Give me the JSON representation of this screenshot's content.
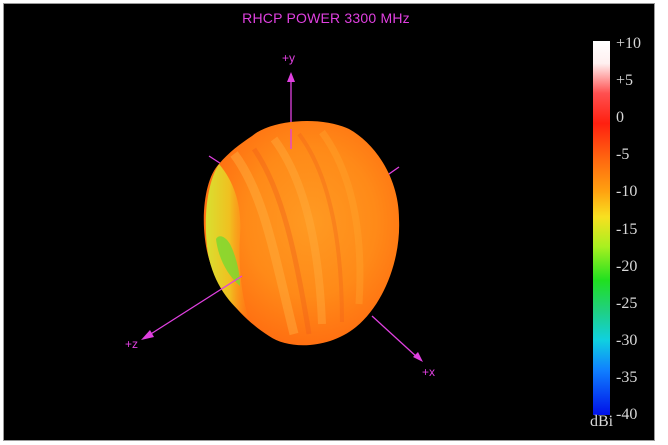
{
  "chart_data": {
    "type": "3d-radiation-pattern",
    "title": "RHCP POWER 3300  MHz",
    "axes": [
      "+y",
      "+z",
      "+x"
    ],
    "colorbar": {
      "unit": "dBi",
      "min": -40,
      "max": 10,
      "ticks": [
        "+10",
        "+5",
        "0",
        "-5",
        "-10",
        "-15",
        "-20",
        "-25",
        "-30",
        "-35",
        "-40"
      ]
    },
    "pattern_gain_range_dbi": [
      -20,
      -3
    ]
  },
  "colors": {
    "background": "#000000",
    "axis": "#e040e0",
    "pattern_main": "#ff8c1a"
  }
}
